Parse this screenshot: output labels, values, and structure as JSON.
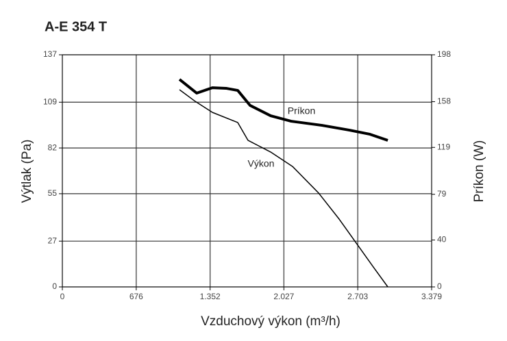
{
  "chart_data": {
    "type": "line",
    "title": "A-E 354 T",
    "x_label": "Vzduchový výkon (m³/h)",
    "y_label": "Výtlak (Pa)",
    "y2_label": "Príkon (W)",
    "xlim": [
      0,
      3379
    ],
    "xticks": [
      0,
      676,
      {
        "value": 1352,
        "label": "1.352"
      },
      {
        "value": 2027,
        "label": "2.027"
      },
      {
        "value": 2703,
        "label": "2.703"
      },
      {
        "value": 3379,
        "label": "3.379"
      }
    ],
    "ylim": [
      0,
      137
    ],
    "yticks": [
      0,
      27,
      55,
      82,
      109,
      137
    ],
    "y2lim": [
      0,
      198
    ],
    "y2ticks": [
      0,
      40,
      79,
      119,
      158,
      198
    ],
    "grid": true,
    "series": [
      {
        "name": "Výkon",
        "color": "#000000",
        "axis": "y",
        "x": [
          1072,
          1216,
          1373,
          1605,
          1699,
          1906,
          2106,
          2345,
          2533,
          2689,
          2846,
          2978
        ],
        "values": [
          116.4,
          109.5,
          103.0,
          97.0,
          86.5,
          79.6,
          71.1,
          55.4,
          40.0,
          25.9,
          11.7,
          0
        ]
      },
      {
        "name": "Príkon",
        "color": "#000000",
        "axis": "y2",
        "x": [
          1072,
          1229,
          1373,
          1498,
          1605,
          1718,
          1906,
          2094,
          2376,
          2627,
          2815,
          2978
        ],
        "values": [
          177,
          165.3,
          169.9,
          169.4,
          167.6,
          154.8,
          146,
          141.3,
          137.8,
          133.7,
          130.2,
          125
        ]
      }
    ]
  }
}
